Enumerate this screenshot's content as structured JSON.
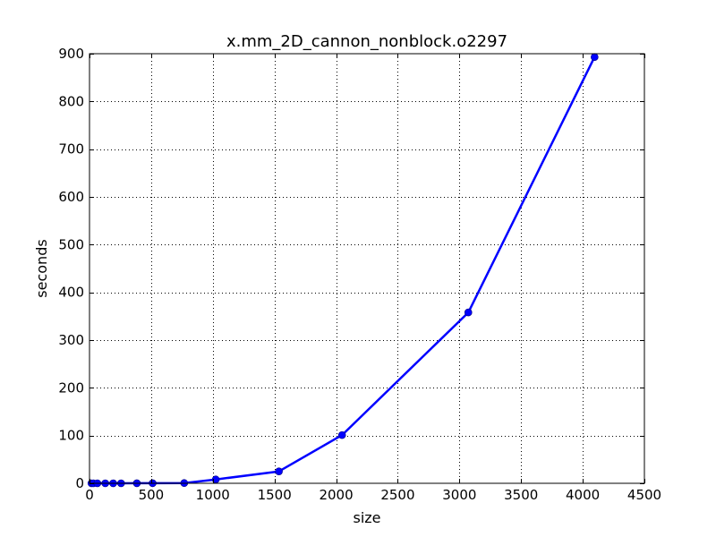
{
  "chart_data": {
    "type": "line",
    "title": "x.mm_2D_cannon_nonblock.o2297",
    "xlabel": "size",
    "ylabel": "seconds",
    "xlim": [
      0,
      4500
    ],
    "ylim": [
      0,
      900
    ],
    "xticks": [
      0,
      500,
      1000,
      1500,
      2000,
      2500,
      3000,
      3500,
      4000,
      4500
    ],
    "yticks": [
      0,
      100,
      200,
      300,
      400,
      500,
      600,
      700,
      800,
      900
    ],
    "grid": true,
    "series": [
      {
        "color": "#0000ff",
        "marker": "circle",
        "x": [
          16,
          32,
          64,
          128,
          192,
          256,
          384,
          512,
          768,
          1024,
          1536,
          2048,
          3072,
          4096
        ],
        "y": [
          0.0,
          0.0,
          0.0,
          0.0,
          0.0,
          0.0,
          0.1,
          0.2,
          0.5,
          8.0,
          25.0,
          101.0,
          358.0,
          893.0
        ]
      }
    ]
  }
}
